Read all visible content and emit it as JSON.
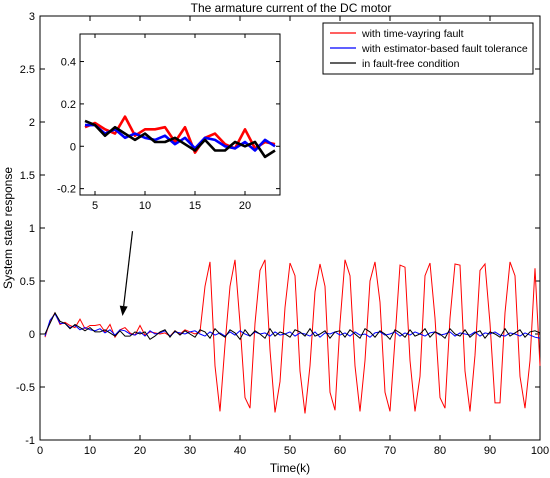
{
  "chart_data": {
    "type": "line",
    "title": "The armature current of the DC motor",
    "xlabel": "Time(k)",
    "ylabel": "System state response",
    "xlim": [
      0,
      100
    ],
    "ylim": [
      -1,
      3
    ],
    "xticks": [
      0,
      10,
      20,
      30,
      40,
      50,
      60,
      70,
      80,
      90,
      100
    ],
    "yticks": [
      -1,
      -0.5,
      0,
      0.5,
      1,
      1.5,
      2,
      2.5,
      3
    ],
    "legend_position": "top-right",
    "series": [
      {
        "name": "with time-vayring fault",
        "color": "#ff0000",
        "x": [
          1,
          2,
          3,
          4,
          5,
          6,
          7,
          8,
          9,
          10,
          11,
          12,
          13,
          14,
          15,
          16,
          17,
          18,
          19,
          20,
          21,
          22,
          23,
          24,
          25,
          26,
          27,
          28,
          29,
          30,
          31,
          32,
          33,
          34,
          35,
          36,
          37,
          38,
          39,
          40,
          41,
          42,
          43,
          44,
          45,
          46,
          47,
          48,
          49,
          50,
          51,
          52,
          53,
          54,
          55,
          56,
          57,
          58,
          59,
          60,
          61,
          62,
          63,
          64,
          65,
          66,
          67,
          68,
          69,
          70,
          71,
          72,
          73,
          74,
          75,
          76,
          77,
          78,
          79,
          80,
          81,
          82,
          83,
          84,
          85,
          86,
          87,
          88,
          89,
          90,
          91,
          92,
          93,
          94,
          95,
          96,
          97,
          98,
          99,
          100
        ],
        "y": [
          -0.03,
          0.12,
          0.2,
          0.09,
          0.11,
          0.08,
          0.06,
          0.14,
          0.05,
          0.08,
          0.08,
          0.09,
          0.02,
          0.09,
          -0.03,
          0.04,
          0.06,
          0.01,
          -0.01,
          0.08,
          -0.01,
          0.02,
          0.01,
          0.0,
          0.01,
          -0.02,
          0.03,
          0.0,
          0.04,
          0.02,
          0.0,
          0.02,
          0.45,
          0.68,
          -0.3,
          -0.73,
          -0.1,
          0.45,
          0.7,
          0.1,
          -0.6,
          -0.7,
          0.1,
          0.6,
          0.7,
          -0.15,
          -0.74,
          -0.45,
          0.25,
          0.67,
          0.55,
          -0.35,
          -0.75,
          -0.3,
          0.4,
          0.66,
          0.45,
          -0.55,
          -0.72,
          0.1,
          0.7,
          0.55,
          -0.3,
          -0.73,
          -0.25,
          0.5,
          0.68,
          0.3,
          -0.55,
          -0.73,
          -0.05,
          0.65,
          0.63,
          -0.25,
          -0.73,
          -0.4,
          0.55,
          0.67,
          0.15,
          -0.6,
          -0.7,
          0.15,
          0.66,
          0.65,
          -0.35,
          -0.73,
          -0.2,
          0.6,
          0.66,
          0.1,
          -0.65,
          -0.65,
          0.2,
          0.68,
          0.55,
          -0.4,
          -0.7,
          -0.25,
          0.62,
          -0.3
        ]
      },
      {
        "name": "with estimator-based fault tolerance",
        "color": "#0000ff",
        "x": [
          1,
          2,
          3,
          4,
          5,
          6,
          7,
          8,
          9,
          10,
          11,
          12,
          13,
          14,
          15,
          16,
          17,
          18,
          19,
          20,
          21,
          22,
          23,
          24,
          25,
          26,
          27,
          28,
          29,
          30,
          31,
          32,
          33,
          34,
          35,
          36,
          37,
          38,
          39,
          40,
          41,
          42,
          43,
          44,
          45,
          46,
          47,
          48,
          49,
          50,
          51,
          52,
          53,
          54,
          55,
          56,
          57,
          58,
          59,
          60,
          61,
          62,
          63,
          64,
          65,
          66,
          67,
          68,
          69,
          70,
          71,
          72,
          73,
          74,
          75,
          76,
          77,
          78,
          79,
          80,
          81,
          82,
          83,
          84,
          85,
          86,
          87,
          88,
          89,
          90,
          91,
          92,
          93,
          94,
          95,
          96,
          97,
          98,
          99,
          100
        ],
        "y": [
          -0.02,
          0.13,
          0.19,
          0.1,
          0.1,
          0.06,
          0.08,
          0.04,
          0.06,
          0.04,
          0.03,
          0.05,
          0.01,
          0.04,
          -0.01,
          0.04,
          0.03,
          0.0,
          -0.01,
          0.02,
          -0.02,
          0.03,
          0.0,
          0.01,
          0.03,
          -0.02,
          0.02,
          0.01,
          0.0,
          0.02,
          0.03,
          0.0,
          -0.02,
          0.02,
          -0.01,
          0.01,
          -0.02,
          0.02,
          -0.01,
          0.03,
          0.0,
          -0.02,
          0.02,
          0.0,
          0.01,
          -0.02,
          0.02,
          -0.01,
          0.0,
          0.02,
          -0.02,
          0.01,
          0.0,
          -0.02,
          0.02,
          -0.03,
          0.01,
          0.0,
          0.02,
          -0.01,
          0.01,
          -0.02,
          0.02,
          -0.01,
          0.0,
          -0.03,
          0.01,
          0.02,
          -0.01,
          0.0,
          0.02,
          -0.02,
          0.01,
          -0.01,
          0.02,
          0.0,
          -0.02,
          0.01,
          0.02,
          -0.01,
          0.0,
          0.02,
          -0.02,
          0.01,
          0.0,
          -0.01,
          0.02,
          -0.02,
          0.01,
          0.0,
          0.02,
          -0.01,
          -0.02,
          0.01,
          0.0,
          -0.02,
          0.01,
          -0.01,
          -0.03,
          -0.04
        ]
      },
      {
        "name": "in fault-free condition",
        "color": "#000000",
        "x": [
          1,
          2,
          3,
          4,
          5,
          6,
          7,
          8,
          9,
          10,
          11,
          12,
          13,
          14,
          15,
          16,
          17,
          18,
          19,
          20,
          21,
          22,
          23,
          24,
          25,
          26,
          27,
          28,
          29,
          30,
          31,
          32,
          33,
          34,
          35,
          36,
          37,
          38,
          39,
          40,
          41,
          42,
          43,
          44,
          45,
          46,
          47,
          48,
          49,
          50,
          51,
          52,
          53,
          54,
          55,
          56,
          57,
          58,
          59,
          60,
          61,
          62,
          63,
          64,
          65,
          66,
          67,
          68,
          69,
          70,
          71,
          72,
          73,
          74,
          75,
          76,
          77,
          78,
          79,
          80,
          81,
          82,
          83,
          84,
          85,
          86,
          87,
          88,
          89,
          90,
          91,
          92,
          93,
          94,
          95,
          96,
          97,
          98,
          99,
          100
        ],
        "y": [
          0.0,
          0.1,
          0.2,
          0.12,
          0.1,
          0.05,
          0.09,
          0.06,
          0.03,
          0.06,
          0.02,
          0.02,
          0.04,
          0.01,
          -0.02,
          0.03,
          -0.02,
          -0.02,
          0.02,
          0.0,
          0.02,
          -0.05,
          -0.02,
          0.02,
          0.04,
          -0.03,
          0.03,
          -0.01,
          0.03,
          0.0,
          -0.03,
          0.04,
          0.02,
          -0.04,
          0.05,
          0.0,
          -0.03,
          0.04,
          0.01,
          -0.05,
          0.04,
          -0.02,
          0.03,
          0.0,
          -0.04,
          0.05,
          -0.02,
          0.02,
          0.0,
          -0.03,
          0.04,
          0.02,
          -0.02,
          0.05,
          -0.02,
          0.0,
          0.03,
          -0.04,
          0.02,
          0.03,
          -0.03,
          0.04,
          0.0,
          -0.04,
          0.05,
          0.02,
          -0.03,
          0.03,
          0.0,
          -0.05,
          0.04,
          0.01,
          -0.03,
          0.04,
          -0.02,
          0.0,
          0.05,
          -0.03,
          0.02,
          0.0,
          -0.04,
          0.05,
          0.0,
          -0.02,
          0.04,
          -0.03,
          0.01,
          0.03,
          -0.04,
          0.02,
          0.0,
          -0.03,
          0.05,
          -0.02,
          0.01,
          0.04,
          -0.03,
          0.02,
          0.03,
          0.01
        ]
      }
    ],
    "inset": {
      "xlim": [
        3.5,
        23.5
      ],
      "ylim": [
        -0.23,
        0.53
      ],
      "xticks": [
        5,
        10,
        15,
        20
      ],
      "yticks": [
        -0.2,
        0,
        0.2,
        0.4
      ],
      "x_range_shown": [
        4,
        23
      ]
    },
    "annotations": [
      {
        "type": "arrow",
        "from": [
          18.5,
          0.97
        ],
        "to": [
          16.5,
          0.17
        ]
      }
    ]
  }
}
